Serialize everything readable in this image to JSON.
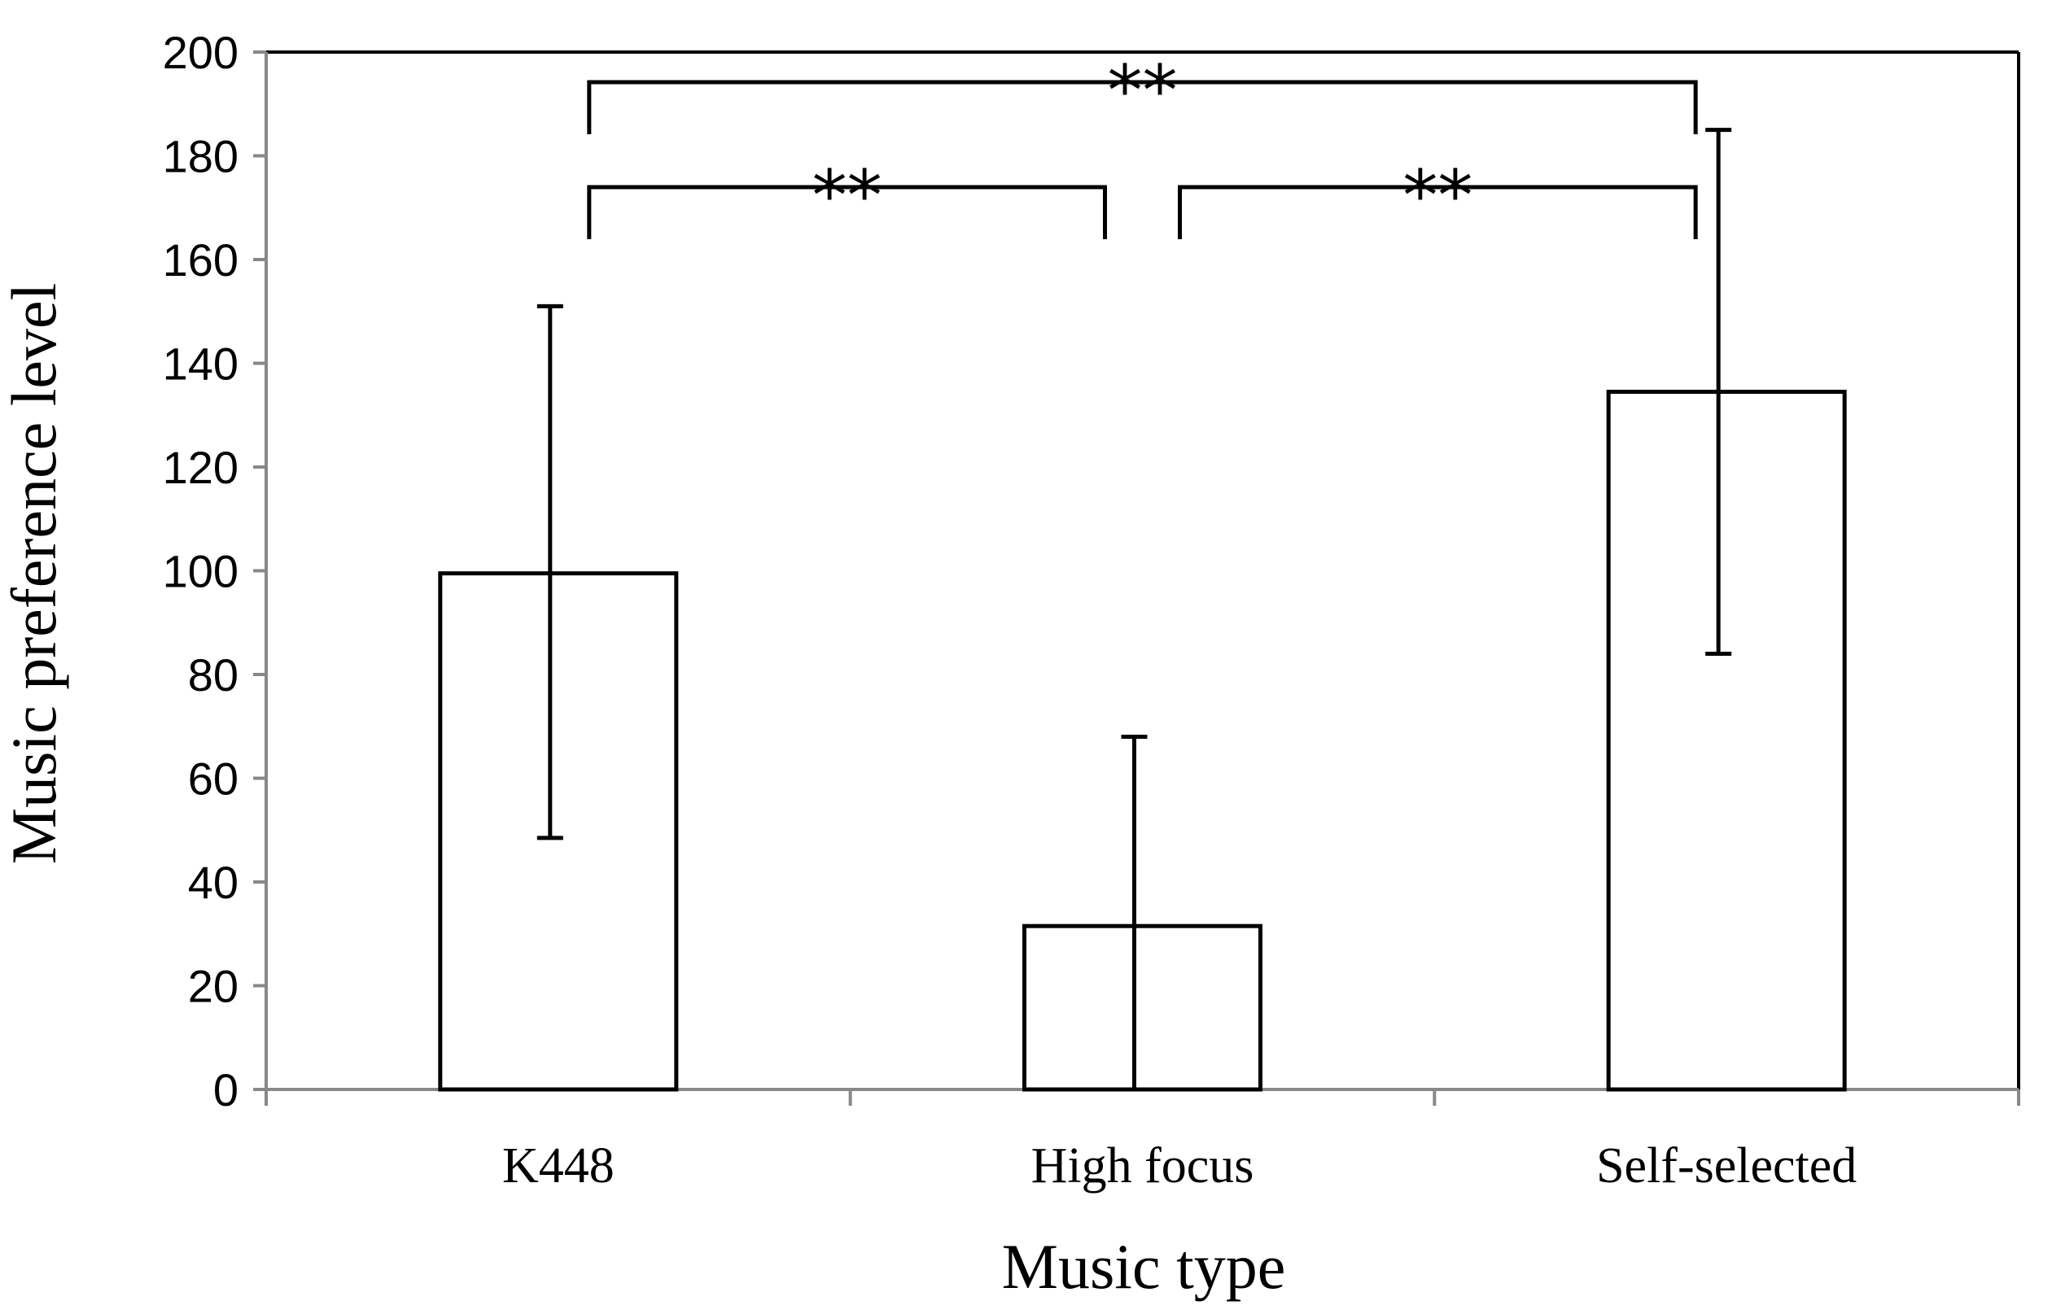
{
  "chart_data": {
    "type": "bar",
    "title": "",
    "xlabel": "Music type",
    "ylabel": "Music preference level",
    "categories": [
      "K448",
      "High focus",
      "Self-selected"
    ],
    "series": [
      {
        "values": [
          99.5,
          31.5,
          134.5
        ],
        "error_upper": [
          151,
          68,
          185
        ],
        "error_lower": [
          48.5,
          0,
          84
        ]
      }
    ],
    "ylim": [
      0,
      200
    ],
    "yticks": [
      "0",
      "20",
      "40",
      "60",
      "80",
      "100",
      "120",
      "140",
      "160",
      "180",
      "200"
    ],
    "grid": false,
    "legend": "none",
    "significance": [
      {
        "from": 0,
        "to": 1,
        "label": "**"
      },
      {
        "from": 1,
        "to": 2,
        "label": "**"
      },
      {
        "from": 0,
        "to": 2,
        "label": "**"
      }
    ],
    "colors": {
      "bar_fill": "#ffffff",
      "bar_stroke": "#000000",
      "axis": "#888888",
      "frame": "#000000"
    }
  }
}
